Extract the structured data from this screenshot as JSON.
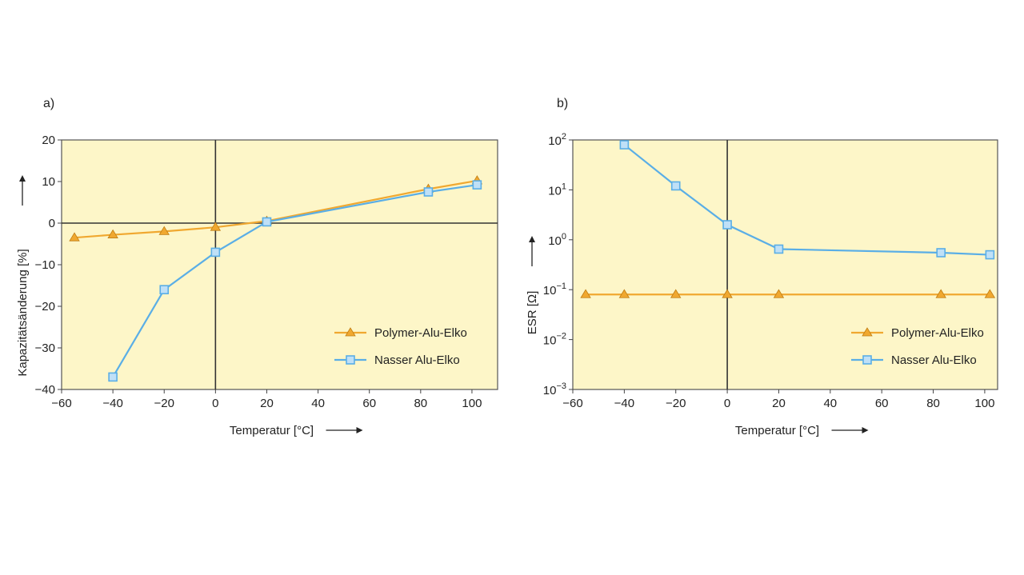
{
  "colors": {
    "polymer": "#f0a830",
    "nasser": "#5aaee6",
    "nasser_fill": "#bfe0f7",
    "plot_bg": "#fdf6c8"
  },
  "chart_data": [
    {
      "type": "line",
      "panel_label": "a)",
      "xlabel": "Temperatur [°C]",
      "ylabel": "Kapazitätsänderung [%]",
      "xlim": [
        -60,
        110
      ],
      "ylim": [
        -40,
        20
      ],
      "yscale": "linear",
      "x_ticks": [
        -60,
        -40,
        -20,
        0,
        20,
        40,
        60,
        80,
        100
      ],
      "x_tick_labels": [
        "−60",
        "−40",
        "−20",
        "0",
        "20",
        "40",
        "60",
        "80",
        "100"
      ],
      "y_ticks": [
        -40,
        -30,
        -20,
        -10,
        0,
        10,
        20
      ],
      "y_tick_labels": [
        "−40",
        "−30",
        "−20",
        "−10",
        "0",
        "10",
        "20"
      ],
      "legend_position": "bottom-right",
      "series": [
        {
          "name": "Polymer-Alu-Elko",
          "marker": "triangle",
          "x": [
            -55,
            -40,
            -20,
            0,
            20,
            83,
            102
          ],
          "y": [
            -3.5,
            -2.8,
            -2,
            -1,
            0.5,
            8.2,
            10.2
          ]
        },
        {
          "name": "Nasser Alu-Elko",
          "marker": "square",
          "x": [
            -40,
            -20,
            0,
            20,
            83,
            102
          ],
          "y": [
            -37,
            -16,
            -7,
            0.3,
            7.5,
            9.2
          ]
        }
      ]
    },
    {
      "type": "line",
      "panel_label": "b)",
      "xlabel": "Temperatur [°C]",
      "ylabel": "ESR [Ω]",
      "xlim": [
        -60,
        105
      ],
      "ylim": [
        -3,
        2
      ],
      "yscale": "log10",
      "x_ticks": [
        -60,
        -40,
        -20,
        0,
        20,
        40,
        60,
        80,
        100
      ],
      "x_tick_labels": [
        "−60",
        "−40",
        "−20",
        "0",
        "20",
        "40",
        "60",
        "80",
        "100"
      ],
      "y_ticks": [
        2,
        1,
        0,
        -1,
        -2,
        -3
      ],
      "y_tick_exponents": [
        "2",
        "1",
        "0",
        "−1",
        "−2",
        "−3"
      ],
      "y_tick_base": "10",
      "legend_position": "bottom-right",
      "series": [
        {
          "name": "Polymer-Alu-Elko",
          "marker": "triangle",
          "x": [
            -55,
            -40,
            -20,
            0,
            20,
            83,
            102
          ],
          "y": [
            0.08,
            0.08,
            0.08,
            0.08,
            0.08,
            0.08,
            0.08
          ]
        },
        {
          "name": "Nasser Alu-Elko",
          "marker": "square",
          "x": [
            -40,
            -20,
            0,
            20,
            83,
            102
          ],
          "y": [
            80,
            12,
            2,
            0.65,
            0.55,
            0.5
          ]
        }
      ]
    }
  ]
}
